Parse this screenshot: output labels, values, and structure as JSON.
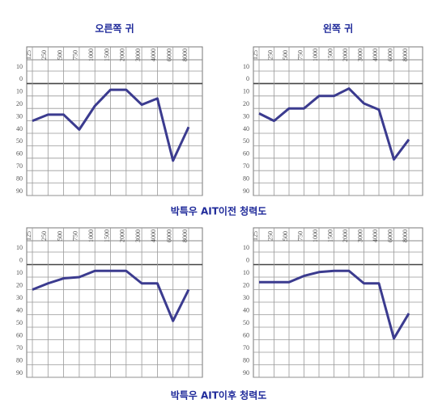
{
  "captions": [
    "박특우 AIT이전 청력도",
    "박특우 AIT이후 청력도"
  ],
  "chart_data": [
    {
      "type": "line",
      "title": "오른쪽 귀",
      "categories": [
        "125",
        "250",
        "500",
        "750",
        "1000",
        "1500",
        "2000",
        "3000",
        "4000",
        "6000",
        "8000"
      ],
      "values": [
        30,
        25,
        25,
        37,
        18,
        5,
        5,
        17,
        12,
        62,
        35
      ],
      "color": "#3b3b8f",
      "ylim": [
        -10,
        90
      ],
      "yticks": [
        {
          "value": -10,
          "label": "10"
        },
        0,
        10,
        20,
        30,
        40,
        50,
        60,
        70,
        80,
        90
      ],
      "grid": true
    },
    {
      "type": "line",
      "title": "왼쪽 귀",
      "categories": [
        "125",
        "250",
        "500",
        "750",
        "1000",
        "1500",
        "2000",
        "3000",
        "4000",
        "6000",
        "8000"
      ],
      "values": [
        24,
        30,
        20,
        20,
        10,
        10,
        4,
        16,
        21,
        61,
        45
      ],
      "color": "#3b3b8f",
      "ylim": [
        -10,
        90
      ],
      "yticks": [
        {
          "value": -10,
          "label": "10"
        },
        0,
        10,
        20,
        30,
        40,
        50,
        60,
        70,
        80,
        90
      ],
      "grid": true
    },
    {
      "type": "line",
      "categories": [
        "125",
        "250",
        "500",
        "750",
        "1000",
        "1500",
        "2000",
        "3000",
        "4000",
        "6000",
        "8000"
      ],
      "values": [
        20,
        15,
        11,
        10,
        5,
        5,
        5,
        15,
        15,
        45,
        20
      ],
      "color": "#3b3b8f",
      "ylim": [
        -10,
        90
      ],
      "yticks": [
        {
          "value": -10,
          "label": "10"
        },
        0,
        10,
        20,
        30,
        40,
        50,
        60,
        70,
        80,
        90
      ],
      "grid": true
    },
    {
      "type": "line",
      "categories": [
        "125",
        "250",
        "500",
        "750",
        "1000",
        "1500",
        "2000",
        "3000",
        "4000",
        "6000",
        "8000"
      ],
      "values": [
        14,
        14,
        14,
        9,
        6,
        5,
        5,
        15,
        15,
        59,
        39
      ],
      "color": "#3b3b8f",
      "ylim": [
        -10,
        90
      ],
      "yticks": [
        {
          "value": -10,
          "label": "10"
        },
        0,
        10,
        20,
        30,
        40,
        50,
        60,
        70,
        80,
        90
      ],
      "grid": true
    }
  ]
}
